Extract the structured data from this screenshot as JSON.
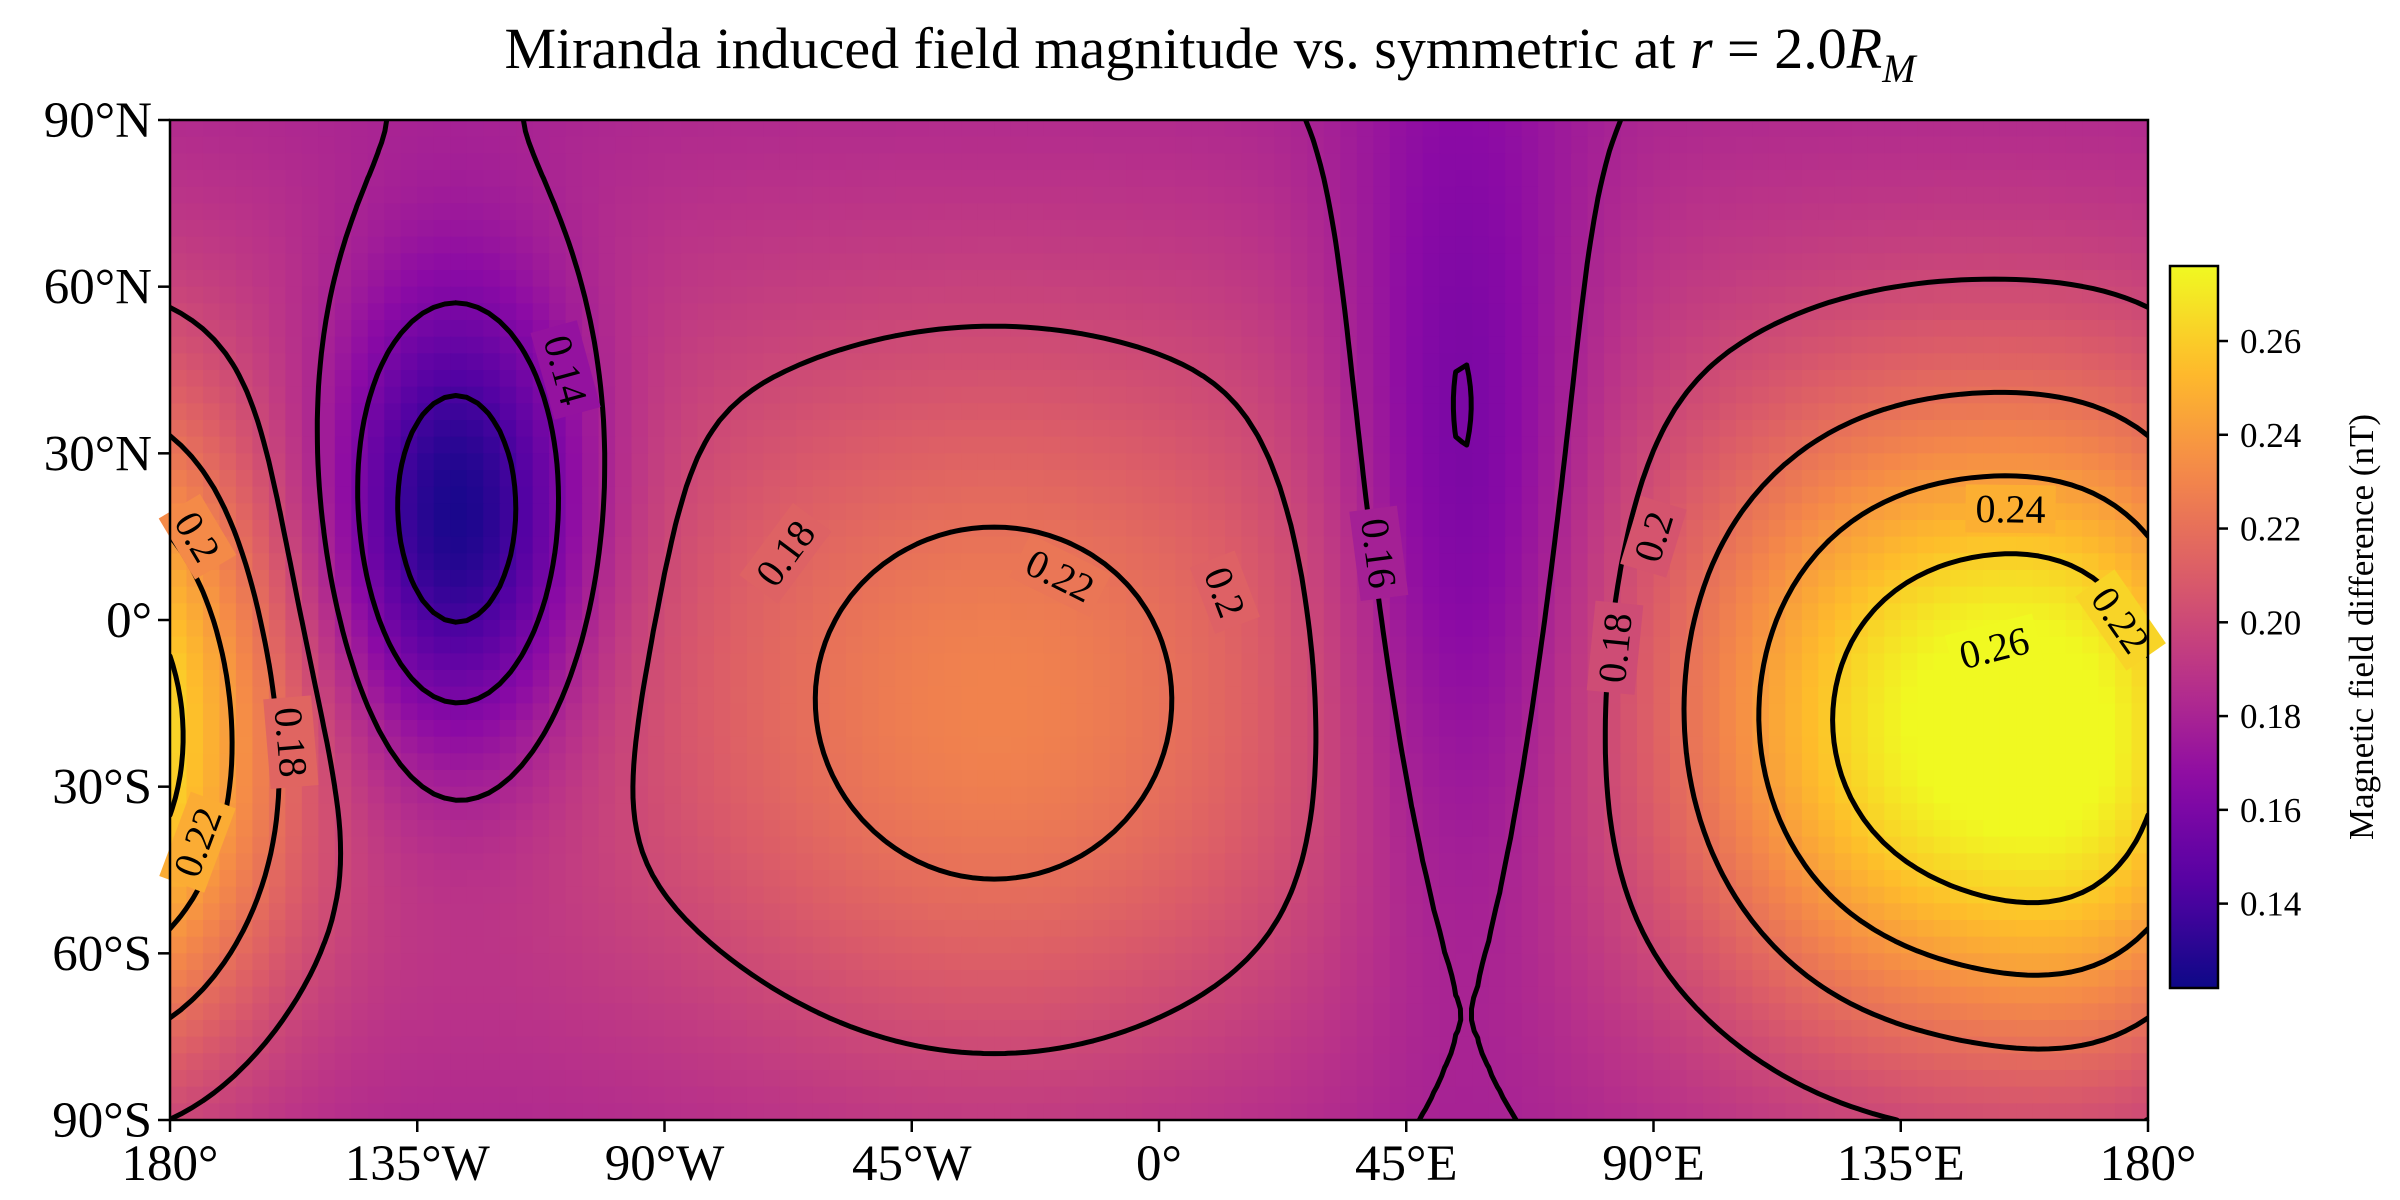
{
  "chart_data": {
    "type": "heatmap",
    "title": {
      "prefix": "Miranda induced field magnitude vs. symmetric at ",
      "var_r": "r",
      "equals": " = 2.0",
      "var_R": "R",
      "subscript": "M"
    },
    "x_axis": {
      "range": [
        -180,
        180
      ],
      "ticks": [
        {
          "value": -180,
          "label": "180°"
        },
        {
          "value": -135,
          "label": "135°W"
        },
        {
          "value": -90,
          "label": "90°W"
        },
        {
          "value": -45,
          "label": "45°W"
        },
        {
          "value": 0,
          "label": "0°"
        },
        {
          "value": 45,
          "label": "45°E"
        },
        {
          "value": 90,
          "label": "90°E"
        },
        {
          "value": 135,
          "label": "135°E"
        },
        {
          "value": 180,
          "label": "180°"
        }
      ]
    },
    "y_axis": {
      "range": [
        -90,
        90
      ],
      "ticks": [
        {
          "value": 90,
          "label": "90°N"
        },
        {
          "value": 60,
          "label": "60°N"
        },
        {
          "value": 30,
          "label": "30°N"
        },
        {
          "value": 0,
          "label": "0°"
        },
        {
          "value": -30,
          "label": "30°S"
        },
        {
          "value": -60,
          "label": "60°S"
        },
        {
          "value": -90,
          "label": "90°S"
        }
      ]
    },
    "colorbar": {
      "label": "Magnetic field difference (nT)",
      "colormap": "plasma",
      "range": [
        0.122,
        0.276
      ],
      "ticks": [
        {
          "value": 0.14,
          "label": "0.14"
        },
        {
          "value": 0.16,
          "label": "0.16"
        },
        {
          "value": 0.18,
          "label": "0.18"
        },
        {
          "value": 0.2,
          "label": "0.20"
        },
        {
          "value": 0.22,
          "label": "0.22"
        },
        {
          "value": 0.24,
          "label": "0.24"
        },
        {
          "value": 0.26,
          "label": "0.26"
        }
      ]
    },
    "field_model": {
      "base": 0.197,
      "features": [
        {
          "lon": -128,
          "lat": 18,
          "sigma_lon": 17,
          "sigma_lat": 30,
          "amp": -0.072
        },
        {
          "lon": -30,
          "lat": -20,
          "sigma_lon": 40,
          "sigma_lat": 45,
          "amp": 0.033
        },
        {
          "lon": 140,
          "lat": -20,
          "sigma_lon": 30,
          "sigma_lat": 40,
          "amp": 0.074
        },
        {
          "lon": 55,
          "lat": 20,
          "sigma_lon": 16,
          "sigma_lat": 55,
          "amp": -0.038
        },
        {
          "lon": -185,
          "lat": -25,
          "sigma_lon": 20,
          "sigma_lat": 40,
          "amp": 0.04
        }
      ],
      "lat_falloff": {
        "center": 0,
        "width": 80,
        "amp": -0.03
      }
    },
    "contour_levels": [
      0.14,
      0.16,
      0.18,
      0.2,
      0.22,
      0.24,
      0.26
    ],
    "contour_labels": [
      {
        "level": 0.14,
        "text": "0.14",
        "lon": -108,
        "lat": 45
      },
      {
        "level": 0.16,
        "text": "0.16",
        "lon": 40,
        "lat": 12
      },
      {
        "level": 0.18,
        "text": "0.18",
        "lon": -68,
        "lat": 12
      },
      {
        "level": 0.18,
        "text": "0.18",
        "lon": 83,
        "lat": -5
      },
      {
        "level": 0.18,
        "text": "0.18",
        "lon": -158,
        "lat": -22
      },
      {
        "level": 0.2,
        "text": "0.2",
        "lon": -175,
        "lat": 15
      },
      {
        "level": 0.2,
        "text": "0.2",
        "lon": 12,
        "lat": 5
      },
      {
        "level": 0.2,
        "text": "0.2",
        "lon": 90,
        "lat": 15
      },
      {
        "level": 0.22,
        "text": "0.22",
        "lon": -18,
        "lat": 8
      },
      {
        "level": 0.22,
        "text": "0.22",
        "lon": 175,
        "lat": 0
      },
      {
        "level": 0.22,
        "text": "0.22",
        "lon": -175,
        "lat": -40
      },
      {
        "level": 0.24,
        "text": "0.24",
        "lon": 155,
        "lat": 20
      },
      {
        "level": 0.26,
        "text": "0.26",
        "lon": 152,
        "lat": -5
      }
    ]
  }
}
